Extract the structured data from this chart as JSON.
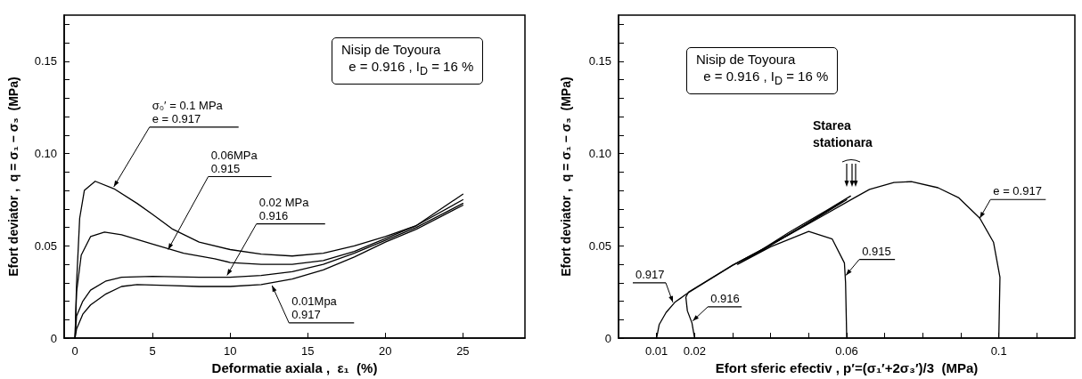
{
  "chart_data": [
    {
      "type": "line",
      "xlabel": "Deformatie axiala ,  ε₁  (%)",
      "ylabel": "Efort deviator ,  q = σ₁ − σ₃  (MPa)",
      "marker": "none",
      "line_style": "solid",
      "xlim": [
        -0.7,
        29
      ],
      "ylim": [
        0,
        0.175
      ],
      "xticks": [
        0,
        5,
        10,
        15,
        20,
        25
      ],
      "yticks": [
        0,
        {
          "value": 0.01,
          "label": null
        },
        {
          "value": 0.02,
          "label": null
        },
        {
          "value": 0.03,
          "label": null
        },
        {
          "value": 0.04,
          "label": null
        },
        0.05,
        {
          "value": 0.06,
          "label": null
        },
        {
          "value": 0.07,
          "label": null
        },
        {
          "value": 0.08,
          "label": null
        },
        {
          "value": 0.09,
          "label": null
        },
        {
          "value": 0.1,
          "label": "0.10"
        },
        {
          "value": 0.11,
          "label": null
        },
        {
          "value": 0.12,
          "label": null
        },
        {
          "value": 0.13,
          "label": null
        },
        {
          "value": 0.14,
          "label": null
        },
        0.15,
        {
          "value": 0.16,
          "label": null
        },
        {
          "value": 0.17,
          "label": null
        }
      ],
      "annotations": [
        "Nisip de Toyoura\ne = 0.916 , I$_{D}$ = 16 %",
        {
          "text": "σ₀′ = 0.1 MPa\ne = 0.917",
          "x": 2.5,
          "y": 0.082
        },
        {
          "text": "0.06MPa\n0.915",
          "x": 6,
          "y": 0.048
        },
        {
          "text": "0.02 MPa\n0.916",
          "x": 9.8,
          "y": 0.034
        },
        {
          "text": "0.01Mpa\n0.917",
          "x": 12.7,
          "y": 0.0285
        }
      ],
      "series": [
        {
          "color": "#000000",
          "x": [
            0,
            0.1,
            0.3,
            0.6,
            1.3,
            2.5,
            4,
            5,
            6.3,
            8,
            10,
            12,
            14,
            16,
            18,
            20,
            22,
            25
          ],
          "values": [
            0,
            0.03,
            0.065,
            0.08,
            0.085,
            0.081,
            0.073,
            0.067,
            0.059,
            0.052,
            0.048,
            0.0455,
            0.0445,
            0.046,
            0.05,
            0.055,
            0.061,
            0.078
          ]
        },
        {
          "color": "#000000",
          "x": [
            0,
            0.1,
            0.4,
            1,
            1.9,
            3,
            5,
            7,
            9,
            10,
            12,
            14,
            16,
            18,
            20,
            22,
            25
          ],
          "values": [
            0,
            0.025,
            0.045,
            0.055,
            0.0575,
            0.056,
            0.051,
            0.046,
            0.043,
            0.041,
            0.04,
            0.04,
            0.042,
            0.047,
            0.054,
            0.061,
            0.075
          ]
        },
        {
          "color": "#000000",
          "x": [
            0,
            0.1,
            0.5,
            1,
            2,
            3,
            5,
            8,
            10,
            12,
            14,
            16,
            18,
            20,
            22,
            25
          ],
          "values": [
            0,
            0.012,
            0.02,
            0.026,
            0.031,
            0.033,
            0.0335,
            0.033,
            0.033,
            0.034,
            0.036,
            0.04,
            0.046,
            0.053,
            0.06,
            0.073
          ]
        },
        {
          "color": "#000000",
          "x": [
            0,
            0.1,
            0.5,
            1,
            2,
            3,
            4,
            6,
            8,
            10,
            12,
            14,
            16,
            18,
            20,
            22,
            25
          ],
          "values": [
            0,
            0.005,
            0.013,
            0.018,
            0.024,
            0.028,
            0.029,
            0.0285,
            0.028,
            0.028,
            0.029,
            0.032,
            0.037,
            0.044,
            0.052,
            0.059,
            0.072
          ]
        }
      ]
    },
    {
      "type": "line",
      "xlabel": "Efort sferic efectiv , p′=(σ₁′+2σ₃′)/3  (MPa)",
      "ylabel": "Efort deviator ,  q = σ₁ − σ₃  (MPa)",
      "marker": "none",
      "line_style": "solid",
      "xlim": [
        0,
        0.12
      ],
      "ylim": [
        0,
        0.175
      ],
      "xticks": [
        0.01,
        0.02,
        {
          "value": 0.03,
          "label": null
        },
        {
          "value": 0.04,
          "label": null
        },
        {
          "value": 0.05,
          "label": null
        },
        0.06,
        {
          "value": 0.07,
          "label": null
        },
        {
          "value": 0.08,
          "label": null
        },
        {
          "value": 0.09,
          "label": null
        },
        0.1,
        {
          "value": 0.11,
          "label": null
        }
      ],
      "yticks": [
        0,
        {
          "value": 0.01,
          "label": null
        },
        {
          "value": 0.02,
          "label": null
        },
        {
          "value": 0.03,
          "label": null
        },
        {
          "value": 0.04,
          "label": null
        },
        0.05,
        {
          "value": 0.06,
          "label": null
        },
        {
          "value": 0.07,
          "label": null
        },
        {
          "value": 0.08,
          "label": null
        },
        {
          "value": 0.09,
          "label": null
        },
        {
          "value": 0.1,
          "label": "0.10"
        },
        {
          "value": 0.11,
          "label": null
        },
        {
          "value": 0.12,
          "label": null
        },
        {
          "value": 0.13,
          "label": null
        },
        {
          "value": 0.14,
          "label": null
        },
        0.15,
        {
          "value": 0.16,
          "label": null
        },
        {
          "value": 0.17,
          "label": null
        }
      ],
      "annotations": [
        "Nisip de Toyoura\ne = 0.916 , I$_{D}$ = 16 %",
        {
          "text": "e = 0.917",
          "x": 0.095,
          "y": 0.065
        },
        {
          "text": "0.915",
          "x": 0.0598,
          "y": 0.034
        },
        {
          "text": "0.917",
          "x": 0.0143,
          "y": 0.0194
        },
        {
          "text": "0.916",
          "x": 0.0195,
          "y": 0.0093
        },
        "Starea\nstationara"
      ],
      "series": [
        {
          "color": "#000000",
          "x": [
            0.1,
            0.1003,
            0.0986,
            0.095,
            0.0895,
            0.084,
            0.077,
            0.0724,
            0.066,
            0.062,
            0.05,
            0.04,
            0.035,
            0.045,
            0.055,
            0.061
          ],
          "values": [
            0,
            0.033,
            0.052,
            0.065,
            0.076,
            0.0815,
            0.0848,
            0.0843,
            0.0806,
            0.076,
            0.062,
            0.0505,
            0.0445,
            0.0575,
            0.0695,
            0.077
          ]
        },
        {
          "color": "#000000",
          "x": [
            0.06,
            0.0597,
            0.0594,
            0.0562,
            0.05,
            0.04,
            0.0313,
            0.04,
            0.05,
            0.06
          ],
          "values": [
            0,
            0.03,
            0.0407,
            0.0537,
            0.0578,
            0.0495,
            0.04,
            0.0505,
            0.0625,
            0.075
          ]
        },
        {
          "color": "#000000",
          "x": [
            0.02,
            0.0193,
            0.0181,
            0.0177,
            0.0184,
            0.03,
            0.04,
            0.05,
            0.059
          ],
          "values": [
            0,
            0.0083,
            0.0148,
            0.0222,
            0.025,
            0.0395,
            0.0505,
            0.0625,
            0.074
          ]
        },
        {
          "color": "#000000",
          "x": [
            0.01,
            0.0107,
            0.0125,
            0.0148,
            0.0179,
            0.03,
            0.04,
            0.05,
            0.058
          ],
          "values": [
            0,
            0.0074,
            0.0139,
            0.0194,
            0.024,
            0.0395,
            0.0505,
            0.0625,
            0.073
          ]
        }
      ]
    }
  ]
}
